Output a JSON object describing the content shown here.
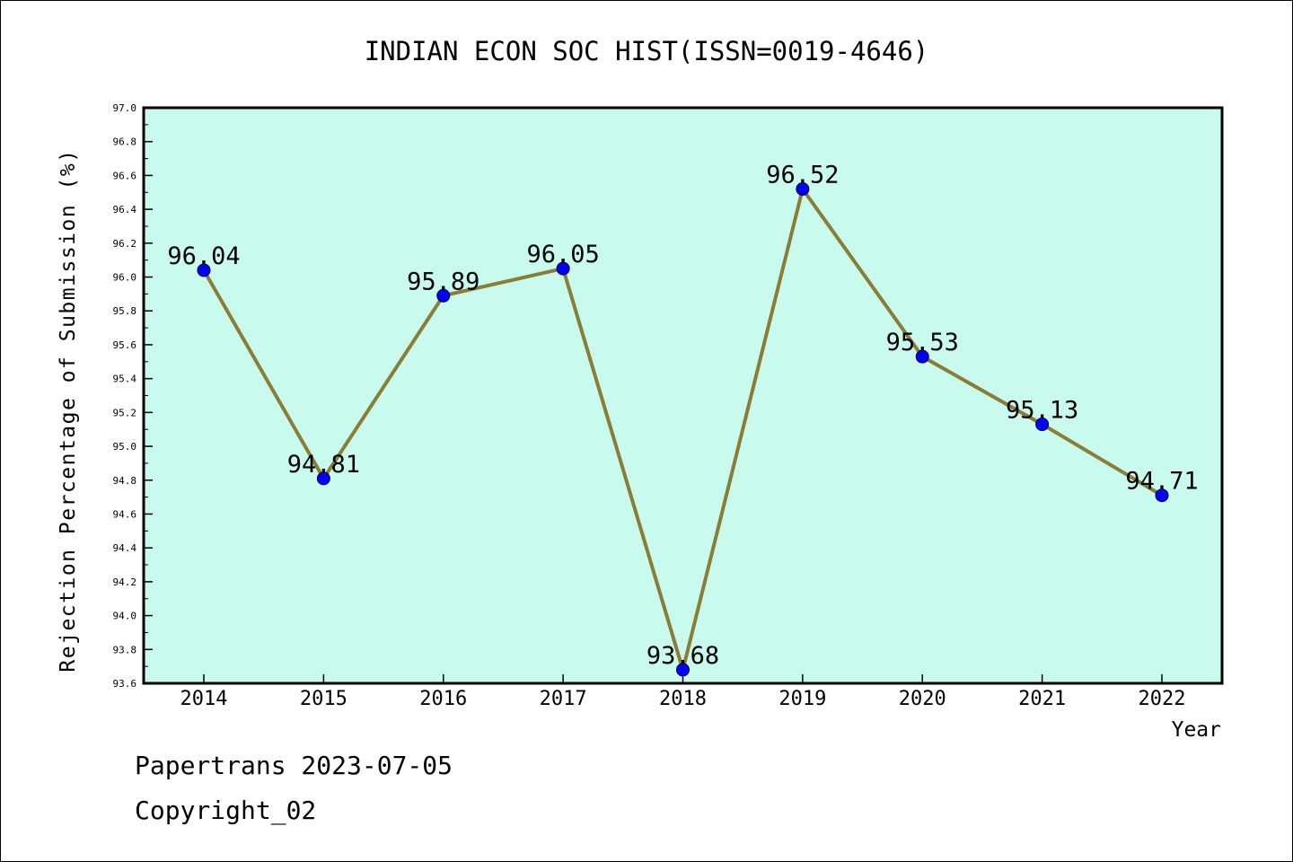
{
  "chart_data": {
    "type": "line",
    "title": "INDIAN ECON SOC HIST(ISSN=0019-4646)",
    "xlabel": "Year",
    "ylabel": "Rejection Percentage of Submission (%)",
    "categories": [
      "2014",
      "2015",
      "2016",
      "2017",
      "2018",
      "2019",
      "2020",
      "2021",
      "2022"
    ],
    "values": [
      96.04,
      94.81,
      95.89,
      96.05,
      93.68,
      96.52,
      95.53,
      95.13,
      94.71
    ],
    "data_labels": [
      "96.04",
      "94.81",
      "95.89",
      "96.05",
      "93.68",
      "96.52",
      "95.53",
      "95.13",
      "94.71"
    ],
    "ylim": [
      93.6,
      97.0
    ],
    "yticks": [
      "93.6",
      "93.8",
      "94.0",
      "94.2",
      "94.4",
      "94.6",
      "94.8",
      "95.0",
      "95.2",
      "95.4",
      "95.6",
      "95.8",
      "96.0",
      "96.2",
      "96.4",
      "96.6",
      "96.8",
      "97.0"
    ],
    "grid": false,
    "colors": {
      "plot_background": "#c8fbee",
      "line": "#8b7d35",
      "marker": "#0000ff"
    }
  },
  "footer": {
    "line1": "Papertrans 2023-07-05",
    "line2": "Copyright_02"
  }
}
